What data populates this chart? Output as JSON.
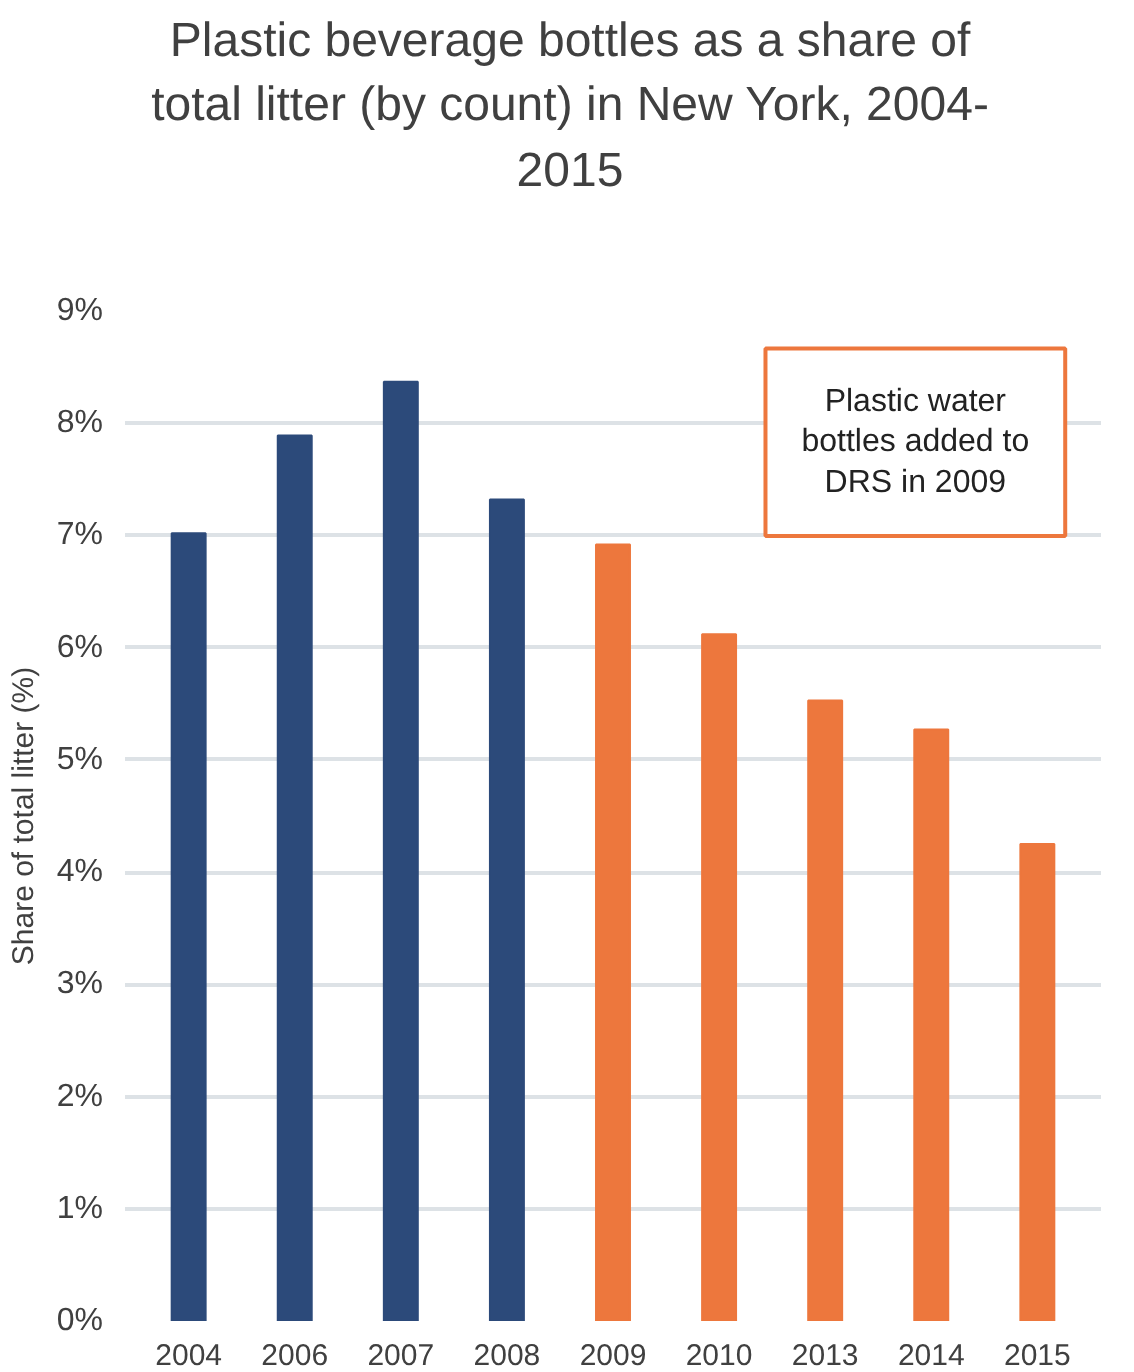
{
  "chart_data": {
    "type": "bar",
    "title": "Plastic beverage bottles as a share of total litter (by count) in New York, 2004-2015",
    "ylabel": "Share of total litter (%)",
    "categories": [
      "2004",
      "2006",
      "2007",
      "2008",
      "2009",
      "2010",
      "2013",
      "2014",
      "2015"
    ],
    "values": [
      7.02,
      7.89,
      8.37,
      7.32,
      6.92,
      6.12,
      5.53,
      5.27,
      4.25
    ],
    "colors": [
      "#2c4a7a",
      "#2c4a7a",
      "#2c4a7a",
      "#2c4a7a",
      "#ed773d",
      "#ed773d",
      "#ed773d",
      "#ed773d",
      "#ed773d"
    ],
    "ylim": [
      0,
      9
    ],
    "yticks": [
      {
        "value": 0,
        "label": "0%"
      },
      {
        "value": 1,
        "label": "1%"
      },
      {
        "value": 2,
        "label": "2%"
      },
      {
        "value": 3,
        "label": "3%"
      },
      {
        "value": 4,
        "label": "4%"
      },
      {
        "value": 5,
        "label": "5%"
      },
      {
        "value": 6,
        "label": "6%"
      },
      {
        "value": 7,
        "label": "7%"
      },
      {
        "value": 8,
        "label": "8%"
      },
      {
        "value": 9,
        "label": "9%"
      }
    ],
    "grid": "y",
    "annotations": [
      "Plastic water bottles added to DRS in 2009"
    ]
  }
}
